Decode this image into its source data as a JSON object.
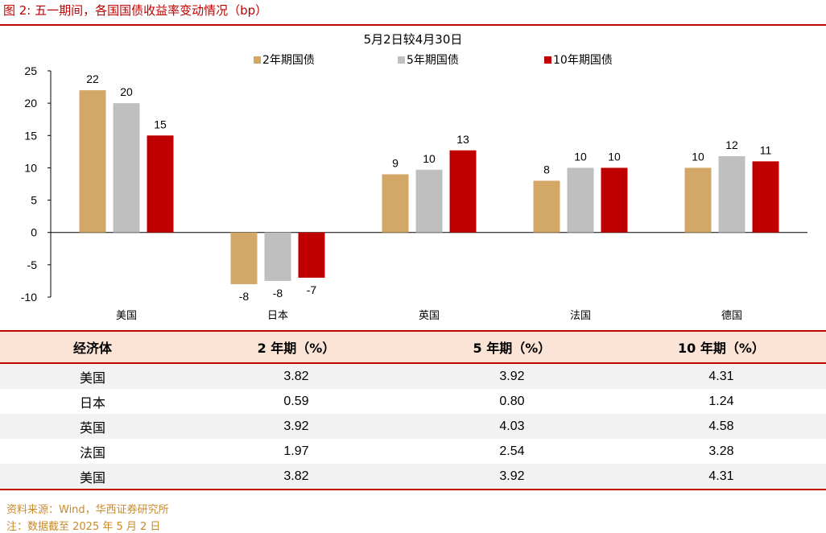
{
  "figure": {
    "title": "图 2:  五一期间，各国国债收益率变动情况（bp）"
  },
  "chart_data": {
    "type": "bar",
    "title": "5月2日较4月30日",
    "categories": [
      "美国",
      "日本",
      "英国",
      "法国",
      "德国"
    ],
    "series": [
      {
        "name": "2年期国债",
        "color": "#d3a866",
        "values": [
          22,
          -8,
          9,
          8,
          10
        ]
      },
      {
        "name": "5年期国债",
        "color": "#bfbfbf",
        "values": [
          20,
          -7.5,
          9.7,
          10,
          11.8
        ]
      },
      {
        "name": "10年期国债",
        "color": "#c00000",
        "values": [
          15,
          -7,
          12.7,
          10,
          11
        ]
      }
    ],
    "data_labels": [
      [
        "22",
        "-8",
        "9",
        "8",
        "10"
      ],
      [
        "20",
        "-8",
        "10",
        "10",
        "12"
      ],
      [
        "15",
        "-7",
        "13",
        "10",
        "11"
      ]
    ],
    "ylim": [
      -10,
      25
    ],
    "yticks": [
      "25",
      "20",
      "15",
      "10",
      "5",
      "0",
      "-5",
      "-10"
    ],
    "ytick_values": [
      25,
      20,
      15,
      10,
      5,
      0,
      -5,
      -10
    ],
    "legend_position": "top",
    "grid": false
  },
  "table": {
    "headers": [
      "经济体",
      "2 年期（%）",
      "5 年期（%）",
      "10 年期（%）"
    ],
    "rows": [
      [
        "美国",
        "3.82",
        "3.92",
        "4.31"
      ],
      [
        "日本",
        "0.59",
        "0.80",
        "1.24"
      ],
      [
        "英国",
        "3.92",
        "4.03",
        "4.58"
      ],
      [
        "法国",
        "1.97",
        "2.54",
        "3.28"
      ],
      [
        "美国",
        "3.82",
        "3.92",
        "4.31"
      ]
    ]
  },
  "notes": {
    "source": "资料来源：Wind，华西证券研究所",
    "footnote": "注：数据截至 2025 年 5 月 2 日"
  }
}
